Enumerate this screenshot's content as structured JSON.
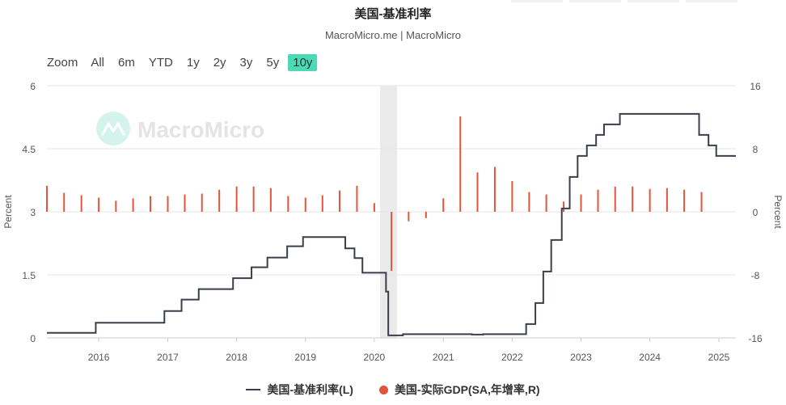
{
  "header": {
    "title": "美国-基准利率",
    "subtitle": "MacroMicro.me | MacroMicro"
  },
  "range_selector": {
    "zoom_label": "Zoom",
    "options": [
      "All",
      "6m",
      "YTD",
      "1y",
      "2y",
      "3y",
      "5y",
      "10y"
    ],
    "selected": "10y"
  },
  "watermark": "MacroMicro",
  "colors": {
    "rate_line": "#3a3f4b",
    "gdp_bar": "#e2553a",
    "accent": "#4dd9b5",
    "recession_band": "#e6e6e6"
  },
  "chart_data": {
    "type": "line",
    "xlabel": "",
    "ylabel_left": "Percent",
    "ylabel_right": "Percent",
    "ylim_left": [
      0,
      6
    ],
    "ylim_right": [
      -16,
      16
    ],
    "yticks_left": [
      "0",
      "1.5",
      "3",
      "4.5",
      "6"
    ],
    "yticks_right": [
      "-16",
      "-8",
      "0",
      "8",
      "16"
    ],
    "xticks": [
      "2016",
      "2017",
      "2018",
      "2019",
      "2020",
      "2021",
      "2022",
      "2023",
      "2024",
      "2025"
    ],
    "x_range": [
      "2015-04-01",
      "2025-04-01"
    ],
    "grid": true,
    "legend_position": "bottom",
    "shaded_region": [
      "2020-02-01",
      "2020-04-30"
    ],
    "series": [
      {
        "name": "美国-基准利率(L)",
        "axis": "left",
        "style": "step",
        "points": [
          [
            "2015-04-01",
            0.12
          ],
          [
            "2015-12-16",
            0.36
          ],
          [
            "2016-12-14",
            0.64
          ],
          [
            "2017-03-15",
            0.91
          ],
          [
            "2017-06-14",
            1.16
          ],
          [
            "2017-12-13",
            1.42
          ],
          [
            "2018-03-21",
            1.68
          ],
          [
            "2018-06-13",
            1.91
          ],
          [
            "2018-09-26",
            2.18
          ],
          [
            "2018-12-19",
            2.4
          ],
          [
            "2019-07-31",
            2.13
          ],
          [
            "2019-09-18",
            1.9
          ],
          [
            "2019-10-30",
            1.55
          ],
          [
            "2020-03-03",
            1.1
          ],
          [
            "2020-03-15",
            0.06
          ],
          [
            "2020-06-01",
            0.09
          ],
          [
            "2021-06-01",
            0.08
          ],
          [
            "2021-08-01",
            0.09
          ],
          [
            "2022-03-16",
            0.33
          ],
          [
            "2022-05-04",
            0.83
          ],
          [
            "2022-06-15",
            1.58
          ],
          [
            "2022-07-27",
            2.33
          ],
          [
            "2022-09-21",
            3.08
          ],
          [
            "2022-11-02",
            3.83
          ],
          [
            "2022-12-14",
            4.33
          ],
          [
            "2023-02-01",
            4.58
          ],
          [
            "2023-03-22",
            4.83
          ],
          [
            "2023-05-03",
            5.08
          ],
          [
            "2023-07-26",
            5.33
          ],
          [
            "2024-09-18",
            4.83
          ],
          [
            "2024-11-07",
            4.58
          ],
          [
            "2024-12-18",
            4.33
          ],
          [
            "2025-04-01",
            4.33
          ]
        ]
      },
      {
        "name": "美国-实际GDP(SA,年增率,R)",
        "axis": "right",
        "style": "bar",
        "points": [
          [
            "2015-04-01",
            3.3
          ],
          [
            "2015-07-01",
            2.4
          ],
          [
            "2015-10-01",
            2.1
          ],
          [
            "2016-01-01",
            1.8
          ],
          [
            "2016-04-01",
            1.4
          ],
          [
            "2016-07-01",
            1.7
          ],
          [
            "2016-10-01",
            2.0
          ],
          [
            "2017-01-01",
            2.0
          ],
          [
            "2017-04-01",
            2.2
          ],
          [
            "2017-07-01",
            2.3
          ],
          [
            "2017-10-01",
            2.8
          ],
          [
            "2018-01-01",
            3.2
          ],
          [
            "2018-04-01",
            3.2
          ],
          [
            "2018-07-01",
            3.0
          ],
          [
            "2018-10-01",
            2.0
          ],
          [
            "2019-01-01",
            1.8
          ],
          [
            "2019-04-01",
            2.1
          ],
          [
            "2019-07-01",
            2.7
          ],
          [
            "2019-10-01",
            3.3
          ],
          [
            "2020-01-01",
            1.1
          ],
          [
            "2020-04-01",
            -7.5
          ],
          [
            "2020-07-01",
            -1.2
          ],
          [
            "2020-10-01",
            -0.8
          ],
          [
            "2021-01-01",
            1.7
          ],
          [
            "2021-04-01",
            12.1
          ],
          [
            "2021-07-01",
            5.0
          ],
          [
            "2021-10-01",
            5.7
          ],
          [
            "2022-01-01",
            3.9
          ],
          [
            "2022-04-01",
            2.5
          ],
          [
            "2022-07-01",
            2.2
          ],
          [
            "2022-10-01",
            1.3
          ],
          [
            "2023-01-01",
            2.2
          ],
          [
            "2023-04-01",
            2.8
          ],
          [
            "2023-07-01",
            3.2
          ],
          [
            "2023-10-01",
            3.2
          ],
          [
            "2024-01-01",
            2.9
          ],
          [
            "2024-04-01",
            3.0
          ],
          [
            "2024-07-01",
            2.8
          ],
          [
            "2024-10-01",
            2.5
          ]
        ]
      }
    ]
  }
}
